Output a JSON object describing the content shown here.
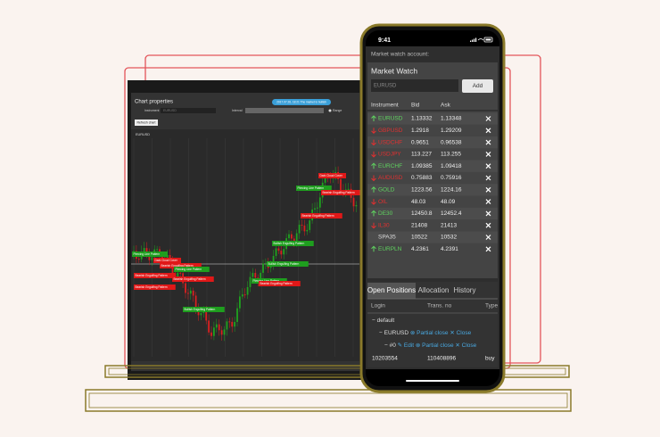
{
  "laptop": {
    "title": "Chart properties",
    "instrument_label": "Instrument",
    "instrument_value": "EURUSD",
    "interval_label": "Interval",
    "range_label": "Range",
    "badge": "2017.07.26, 18:21 The market is bullish",
    "refresh_button": "Refresh chart",
    "chart_symbol": "EURUSD",
    "patterns": [
      {
        "text": "Piercing Line Pattern",
        "kind": "bullish"
      },
      {
        "text": "Dark Cloud Cover",
        "kind": "bearish"
      },
      {
        "text": "Bearish Engulfing Pattern",
        "kind": "bearish"
      },
      {
        "text": "Piercing Line Pattern",
        "kind": "bullish"
      },
      {
        "text": "Bearish Engulfing Pattern",
        "kind": "bearish"
      },
      {
        "text": "Bearish Engulfing Pattern",
        "kind": "bearish"
      },
      {
        "text": "Bearish Engulfing Pattern",
        "kind": "bearish"
      },
      {
        "text": "Bullish Engulfing Pattern",
        "kind": "bullish"
      },
      {
        "text": "Bullish Engulfing Pattern",
        "kind": "bullish"
      },
      {
        "text": "Bullish Engulfing Pattern",
        "kind": "bullish"
      },
      {
        "text": "Piercing Line Pattern",
        "kind": "bullish"
      },
      {
        "text": "Bearish Engulfing Pattern",
        "kind": "bearish"
      },
      {
        "text": "Piercing Line Pattern",
        "kind": "bullish"
      },
      {
        "text": "Dark Cloud Cover",
        "kind": "bearish"
      },
      {
        "text": "Bearish Engulfing Pattern",
        "kind": "bearish"
      },
      {
        "text": "Bearish Engulfing Pattern",
        "kind": "bearish"
      }
    ]
  },
  "phone": {
    "time": "9:41",
    "account_label": "Market watch account:",
    "market_watch": {
      "title": "Market Watch",
      "input": "EURUSD",
      "add_button": "Add",
      "headers": [
        "Instrument",
        "Bid",
        "Ask"
      ],
      "rows": [
        {
          "instrument": "EURUSD",
          "bid": 1.13332,
          "ask": 1.13348,
          "direction": "up"
        },
        {
          "instrument": "GBPUSD",
          "bid": 1.2918,
          "ask": 1.29209,
          "direction": "down"
        },
        {
          "instrument": "USDCHF",
          "bid": 0.9651,
          "ask": 0.96538,
          "direction": "down"
        },
        {
          "instrument": "USDJPY",
          "bid": 113.227,
          "ask": 113.255,
          "direction": "down"
        },
        {
          "instrument": "EURCHF",
          "bid": 1.09385,
          "ask": 1.09418,
          "direction": "up"
        },
        {
          "instrument": "AUDUSD",
          "bid": 0.75883,
          "ask": 0.75916,
          "direction": "down"
        },
        {
          "instrument": "GOLD",
          "bid": 1223.56,
          "ask": 1224.16,
          "direction": "up"
        },
        {
          "instrument": "OIL",
          "bid": 48.03,
          "ask": 48.09,
          "direction": "down"
        },
        {
          "instrument": "DE30",
          "bid": 12450.8,
          "ask": 12452.4,
          "direction": "up"
        },
        {
          "instrument": "IL30",
          "bid": 21408,
          "ask": 21413,
          "direction": "down"
        },
        {
          "instrument": "SPA35",
          "bid": 10522,
          "ask": 10532
        },
        {
          "instrument": "EURPLN",
          "bid": 4.2361,
          "ask": 4.2391,
          "direction": "up"
        }
      ]
    },
    "tabs": [
      "Open Positions",
      "Allocation",
      "History"
    ],
    "positions": {
      "headers": [
        "Login",
        "Trans. no",
        "Type"
      ],
      "group": "default",
      "symbol": "EURUSD",
      "symbol_actions": [
        "Partial close",
        "Close"
      ],
      "order": "#0",
      "order_actions": [
        "Edit",
        "Partial close",
        "Close"
      ],
      "rows": [
        [
          "10203554",
          "110408896",
          "buy"
        ]
      ]
    }
  }
}
